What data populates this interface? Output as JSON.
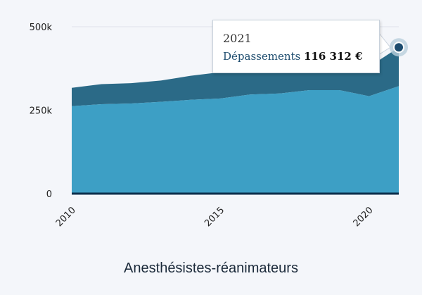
{
  "caption": "Anesthésistes-réanimateurs",
  "tooltip": {
    "year": "2021",
    "series_label": "Dépassements",
    "value": "116 312 €"
  },
  "colors": {
    "base_area": "#3d9fc5",
    "top_area": "#2b6a87",
    "baseline": "#0c2f4c",
    "marker": "#1d4c6e"
  },
  "chart_data": {
    "type": "area",
    "stacked": true,
    "x": [
      2010,
      2011,
      2012,
      2013,
      2014,
      2015,
      2016,
      2017,
      2018,
      2019,
      2020,
      2021
    ],
    "series": [
      {
        "name": "",
        "values": [
          262000,
          268000,
          270000,
          275000,
          281000,
          285000,
          297000,
          300000,
          310000,
          310000,
          292000,
          322000
        ]
      },
      {
        "name": "Dépassements",
        "values": [
          55000,
          60000,
          61000,
          64000,
          72000,
          79000,
          75000,
          76000,
          80000,
          83000,
          88000,
          116312
        ]
      }
    ],
    "ylim": [
      0,
      500000
    ],
    "yticks": [
      0,
      250000,
      500000
    ],
    "ytick_labels": [
      "0",
      "250k",
      "500k"
    ],
    "xticks": [
      2010,
      2015,
      2020
    ],
    "xtick_labels": [
      "2010",
      "2015",
      "2020"
    ],
    "grid": true
  }
}
